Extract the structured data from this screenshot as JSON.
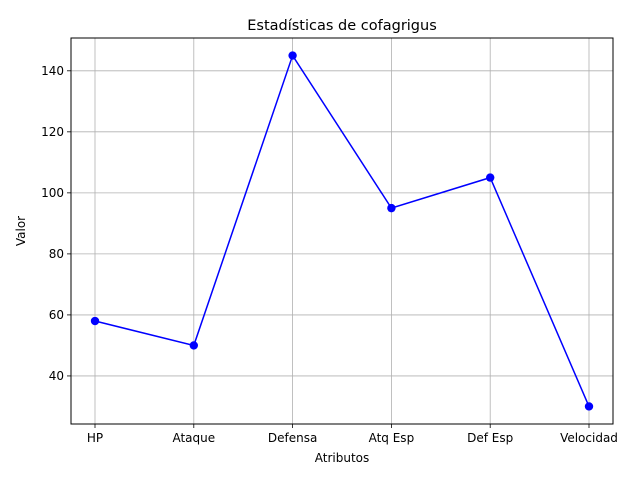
{
  "chart_data": {
    "type": "line",
    "title": "Estadísticas de cofagrigus",
    "xlabel": "Atributos",
    "ylabel": "Valor",
    "categories": [
      "HP",
      "Ataque",
      "Defensa",
      "Atq Esp",
      "Def Esp",
      "Velocidad"
    ],
    "series": [
      {
        "values": [
          58,
          50,
          145,
          95,
          105,
          30
        ]
      }
    ],
    "yticks": [
      40,
      60,
      80,
      100,
      120,
      140
    ],
    "ylim": [
      24.25,
      150.75
    ],
    "grid": true,
    "marker": "circle",
    "colors": {
      "line": "#0000ff",
      "grid": "#b0b0b0",
      "axes": "#000000"
    }
  }
}
